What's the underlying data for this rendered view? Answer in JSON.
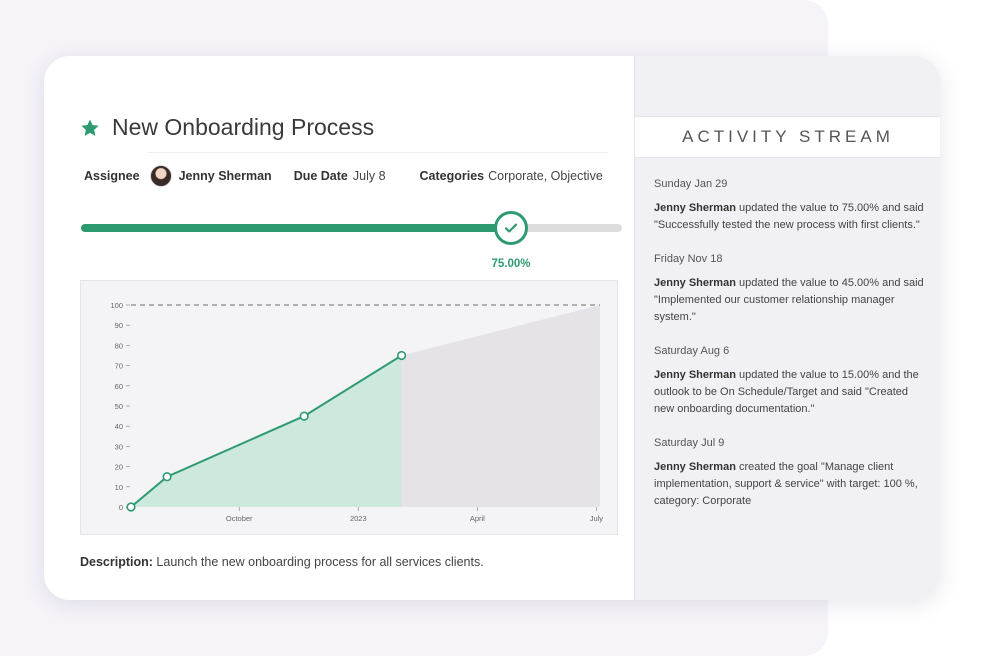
{
  "task": {
    "title": "New Onboarding Process",
    "assignee_label": "Assignee",
    "assignee_name": "Jenny Sherman",
    "due_label": "Due Date",
    "due_value": "July 8",
    "categories_label": "Categories",
    "categories_value": "Corporate, Objective",
    "progress_fraction": 0.75,
    "progress_text": "75.00%",
    "description_label": "Description:",
    "description_text": " Launch the new onboarding process for all services clients."
  },
  "colors": {
    "accent": "#2e9a70",
    "area_fill": "#cde8dc",
    "projection_fill": "#e5e3e8",
    "target_line": "#999999"
  },
  "icons": {
    "title": "star-icon",
    "handle": "check-icon"
  },
  "chart_data": {
    "type": "area",
    "x": [
      0,
      1,
      4.8,
      7.5
    ],
    "y": [
      0,
      15,
      45,
      75
    ],
    "xlim": [
      0,
      13
    ],
    "ylim": [
      0,
      100
    ],
    "yticks": [
      0,
      10,
      20,
      30,
      40,
      50,
      60,
      70,
      80,
      90,
      100
    ],
    "xtick_labels": [
      {
        "label": "October",
        "x": 3
      },
      {
        "label": "2023",
        "x": 6.3
      },
      {
        "label": "April",
        "x": 9.6
      },
      {
        "label": "July",
        "x": 12.9
      }
    ],
    "target": 100,
    "projection": {
      "from": [
        7.5,
        75
      ],
      "to": [
        13,
        100
      ]
    }
  },
  "activity": {
    "header": "ACTIVITY STREAM",
    "entries": [
      {
        "date": "Sunday Jan 29",
        "actor": "Jenny Sherman",
        "text": " updated the value to 75.00% and said \"Successfully tested the new process with first clients.\""
      },
      {
        "date": "Friday Nov 18",
        "actor": "Jenny Sherman",
        "text": " updated the value to 45.00% and said \"Implemented our customer relationship manager system.\""
      },
      {
        "date": "Saturday Aug 6",
        "actor": "Jenny Sherman",
        "text": " updated the value to 15.00% and the outlook to be On Schedule/Target and said \"Created new onboarding documentation.\""
      },
      {
        "date": "Saturday Jul 9",
        "actor": "Jenny Sherman",
        "text": " created the goal \"Manage client implementation, support & service\" with target: 100 %, category: Corporate"
      }
    ]
  }
}
